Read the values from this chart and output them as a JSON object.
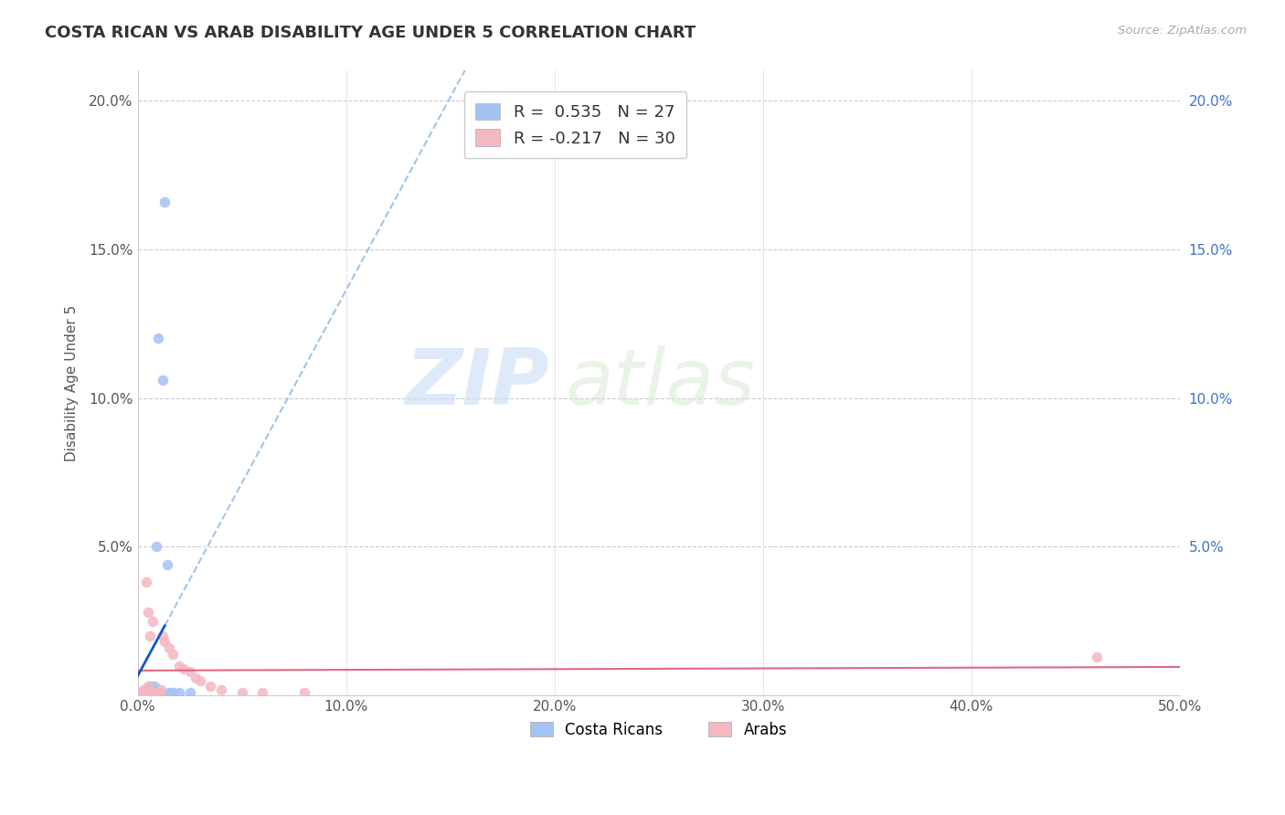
{
  "title": "COSTA RICAN VS ARAB DISABILITY AGE UNDER 5 CORRELATION CHART",
  "source": "Source: ZipAtlas.com",
  "ylabel": "Disability Age Under 5",
  "xlim": [
    0.0,
    0.5
  ],
  "ylim": [
    0.0,
    0.21
  ],
  "xtick_values": [
    0.0,
    0.1,
    0.2,
    0.3,
    0.4,
    0.5
  ],
  "xtick_labels": [
    "0.0%",
    "10.0%",
    "20.0%",
    "30.0%",
    "40.0%",
    "50.0%"
  ],
  "ytick_values": [
    0.05,
    0.1,
    0.15,
    0.2
  ],
  "ytick_labels": [
    "5.0%",
    "10.0%",
    "15.0%",
    "20.0%"
  ],
  "right_ytick_values": [
    0.05,
    0.1,
    0.15,
    0.2
  ],
  "right_ytick_labels": [
    "5.0%",
    "10.0%",
    "15.0%",
    "20.0%"
  ],
  "watermark_zip": "ZIP",
  "watermark_atlas": "atlas",
  "legend_label1": "R =  0.535   N = 27",
  "legend_label2": "R = -0.217   N = 30",
  "color_blue": "#a4c2f4",
  "color_pink": "#f4b8c1",
  "color_line_blue": "#1155cc",
  "color_line_pink": "#e06880",
  "color_dashed": "#9fc5e8",
  "cr_x": [
    0.003,
    0.004,
    0.004,
    0.005,
    0.005,
    0.005,
    0.006,
    0.006,
    0.006,
    0.007,
    0.007,
    0.007,
    0.008,
    0.008,
    0.009,
    0.009,
    0.009,
    0.01,
    0.011,
    0.012,
    0.013,
    0.014,
    0.015,
    0.016,
    0.017,
    0.02,
    0.025
  ],
  "cr_y": [
    0.001,
    0.001,
    0.002,
    0.001,
    0.001,
    0.002,
    0.001,
    0.001,
    0.003,
    0.001,
    0.001,
    0.002,
    0.001,
    0.003,
    0.001,
    0.001,
    0.05,
    0.12,
    0.001,
    0.106,
    0.166,
    0.044,
    0.001,
    0.001,
    0.001,
    0.001,
    0.001
  ],
  "arab_x": [
    0.002,
    0.003,
    0.004,
    0.004,
    0.005,
    0.005,
    0.005,
    0.006,
    0.006,
    0.007,
    0.007,
    0.008,
    0.009,
    0.01,
    0.011,
    0.012,
    0.013,
    0.015,
    0.017,
    0.02,
    0.022,
    0.025,
    0.028,
    0.03,
    0.035,
    0.04,
    0.05,
    0.06,
    0.08,
    0.46
  ],
  "arab_y": [
    0.001,
    0.002,
    0.001,
    0.038,
    0.001,
    0.028,
    0.003,
    0.001,
    0.02,
    0.001,
    0.025,
    0.001,
    0.001,
    0.001,
    0.002,
    0.02,
    0.018,
    0.016,
    0.014,
    0.01,
    0.009,
    0.008,
    0.006,
    0.005,
    0.003,
    0.002,
    0.001,
    0.001,
    0.001,
    0.013
  ]
}
